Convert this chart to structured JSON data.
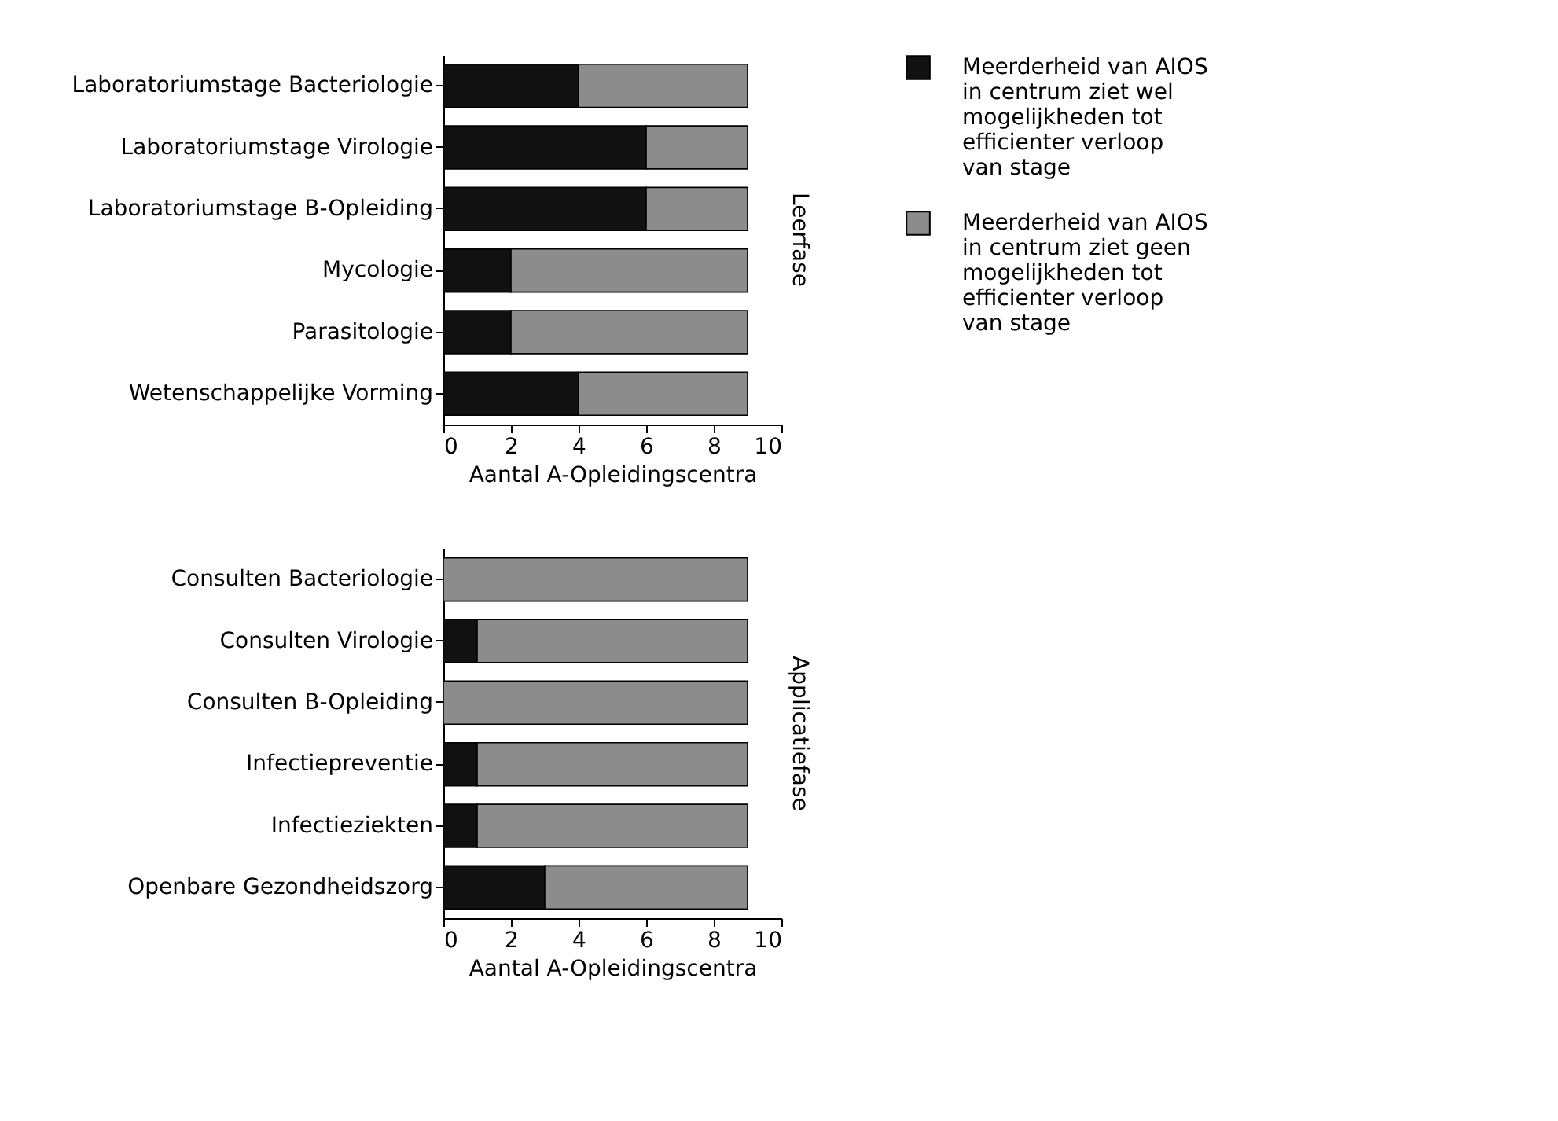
{
  "chart_data": [
    {
      "type": "bar",
      "orientation": "horizontal",
      "stacked": true,
      "xlabel": "Aantal A-Opleidingscentra",
      "y2label": "Leerfase",
      "categories": [
        "Laboratoriumstage Bacteriologie",
        "Laboratoriumstage Virologie",
        "Laboratoriumstage B-Opleiding",
        "Mycologie",
        "Parasitologie",
        "Wetenschappelijke Vorming"
      ],
      "series": [
        {
          "name": "Meerderheid van AIOS in centrum ziet wel mogelijkheden tot efficienter verloop van stage",
          "color": "#111111",
          "values": [
            4,
            6,
            6,
            2,
            2,
            4
          ]
        },
        {
          "name": "Meerderheid van AIOS in centrum ziet geen mogelijkheden tot efficienter verloop van stage",
          "color": "#8c8c8c",
          "values": [
            5,
            3,
            3,
            7,
            7,
            5
          ]
        }
      ],
      "xlim": [
        0,
        10
      ],
      "xticks": [
        0,
        2,
        4,
        6,
        8,
        10
      ],
      "grid": false,
      "legend": "right"
    },
    {
      "type": "bar",
      "orientation": "horizontal",
      "stacked": true,
      "xlabel": "Aantal A-Opleidingscentra",
      "y2label": "Applicatiefase",
      "categories": [
        "Consulten Bacteriologie",
        "Consulten Virologie",
        "Consulten B-Opleiding",
        "Infectiepreventie",
        "Infectieziekten",
        "Openbare Gezondheidszorg"
      ],
      "series": [
        {
          "name": "Meerderheid van AIOS in centrum ziet wel mogelijkheden tot efficienter verloop van stage",
          "color": "#111111",
          "values": [
            0,
            1,
            0,
            1,
            1,
            3
          ]
        },
        {
          "name": "Meerderheid van AIOS in centrum ziet geen mogelijkheden tot efficienter verloop van stage",
          "color": "#8c8c8c",
          "values": [
            9,
            8,
            9,
            8,
            8,
            6
          ]
        }
      ],
      "xlim": [
        0,
        10
      ],
      "xticks": [
        0,
        2,
        4,
        6,
        8,
        10
      ],
      "grid": false,
      "legend": "right"
    }
  ]
}
